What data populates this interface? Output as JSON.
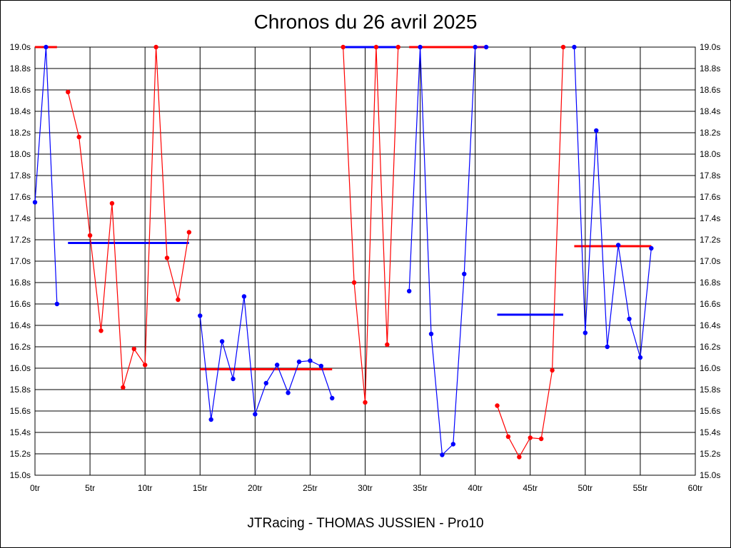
{
  "header": {
    "title": "Chronos du 26 avril 2025"
  },
  "footer": {
    "text": "JTRacing - THOMAS JUSSIEN - Pro10"
  },
  "colors": {
    "red": "#ff0000",
    "blue": "#0000ff",
    "grid": "#000000",
    "axis": "#000000"
  },
  "chart_data": {
    "type": "line",
    "title": "Chronos du 26 avril 2025",
    "xlabel": "",
    "ylabel": "",
    "xlim": [
      0,
      60
    ],
    "ylim": [
      15.0,
      19.0
    ],
    "grid": true,
    "x_ticks": [
      0,
      5,
      10,
      15,
      20,
      25,
      30,
      35,
      40,
      45,
      50,
      55,
      60
    ],
    "x_tick_labels": [
      "0tr",
      "5tr",
      "10tr",
      "15tr",
      "20tr",
      "25tr",
      "30tr",
      "35tr",
      "40tr",
      "45tr",
      "50tr",
      "55tr",
      "60tr"
    ],
    "y_ticks": [
      15.0,
      15.2,
      15.4,
      15.6,
      15.8,
      16.0,
      16.2,
      16.4,
      16.6,
      16.8,
      17.0,
      17.2,
      17.4,
      17.6,
      17.8,
      18.0,
      18.2,
      18.4,
      18.6,
      18.8,
      19.0
    ],
    "y_tick_labels": [
      "15.0s",
      "15.2s",
      "15.4s",
      "15.6s",
      "15.8s",
      "16.0s",
      "16.2s",
      "16.4s",
      "16.6s",
      "16.8s",
      "17.0s",
      "17.2s",
      "17.4s",
      "17.6s",
      "17.8s",
      "18.0s",
      "18.2s",
      "18.4s",
      "18.6s",
      "18.8s",
      "19.0s"
    ],
    "series": [
      {
        "color": "#0000ff",
        "x": [
          0,
          1,
          2
        ],
        "y": [
          17.55,
          19.0,
          16.6
        ]
      },
      {
        "color": "#ff0000",
        "x": [
          3,
          4,
          5,
          6,
          7,
          8,
          9,
          10,
          11,
          12,
          13,
          14
        ],
        "y": [
          18.58,
          18.16,
          17.24,
          16.35,
          17.54,
          15.82,
          16.18,
          16.03,
          19.0,
          17.03,
          16.64,
          17.27
        ]
      },
      {
        "color": "#0000ff",
        "x": [
          15,
          16,
          17,
          18,
          19,
          20,
          21,
          22,
          23,
          24,
          25,
          26,
          27
        ],
        "y": [
          16.49,
          15.52,
          16.25,
          15.9,
          16.67,
          15.57,
          15.86,
          16.03,
          15.77,
          16.06,
          16.07,
          16.02,
          15.72
        ]
      },
      {
        "color": "#ff0000",
        "x": [
          28,
          29,
          30,
          31,
          32,
          33
        ],
        "y": [
          19.0,
          16.8,
          15.68,
          19.0,
          16.22,
          19.0
        ]
      },
      {
        "color": "#0000ff",
        "x": [
          34,
          35,
          36,
          37,
          38,
          39,
          40,
          41
        ],
        "y": [
          16.72,
          19.0,
          16.32,
          15.19,
          15.29,
          16.88,
          19.0,
          19.0
        ]
      },
      {
        "color": "#ff0000",
        "x": [
          42,
          43,
          44,
          45,
          46,
          47,
          48
        ],
        "y": [
          15.65,
          15.36,
          15.17,
          15.35,
          15.34,
          15.98,
          19.0
        ]
      },
      {
        "color": "#0000ff",
        "x": [
          49,
          50,
          51,
          52,
          53,
          54,
          55,
          56
        ],
        "y": [
          19.0,
          16.33,
          18.22,
          16.2,
          17.15,
          16.46,
          16.1,
          17.12
        ]
      }
    ],
    "averages": [
      {
        "color": "#ff0000",
        "x": [
          0,
          2
        ],
        "y": 19.0
      },
      {
        "color": "#0000ff",
        "x": [
          3,
          14
        ],
        "y": 17.17
      },
      {
        "color": "#ff0000",
        "x": [
          15,
          27
        ],
        "y": 15.99
      },
      {
        "color": "#0000ff",
        "x": [
          28,
          33
        ],
        "y": 19.0
      },
      {
        "color": "#ff0000",
        "x": [
          34,
          41
        ],
        "y": 19.0
      },
      {
        "color": "#0000ff",
        "x": [
          42,
          48
        ],
        "y": 16.5
      },
      {
        "color": "#ff0000",
        "x": [
          49,
          56
        ],
        "y": 17.14
      }
    ]
  }
}
